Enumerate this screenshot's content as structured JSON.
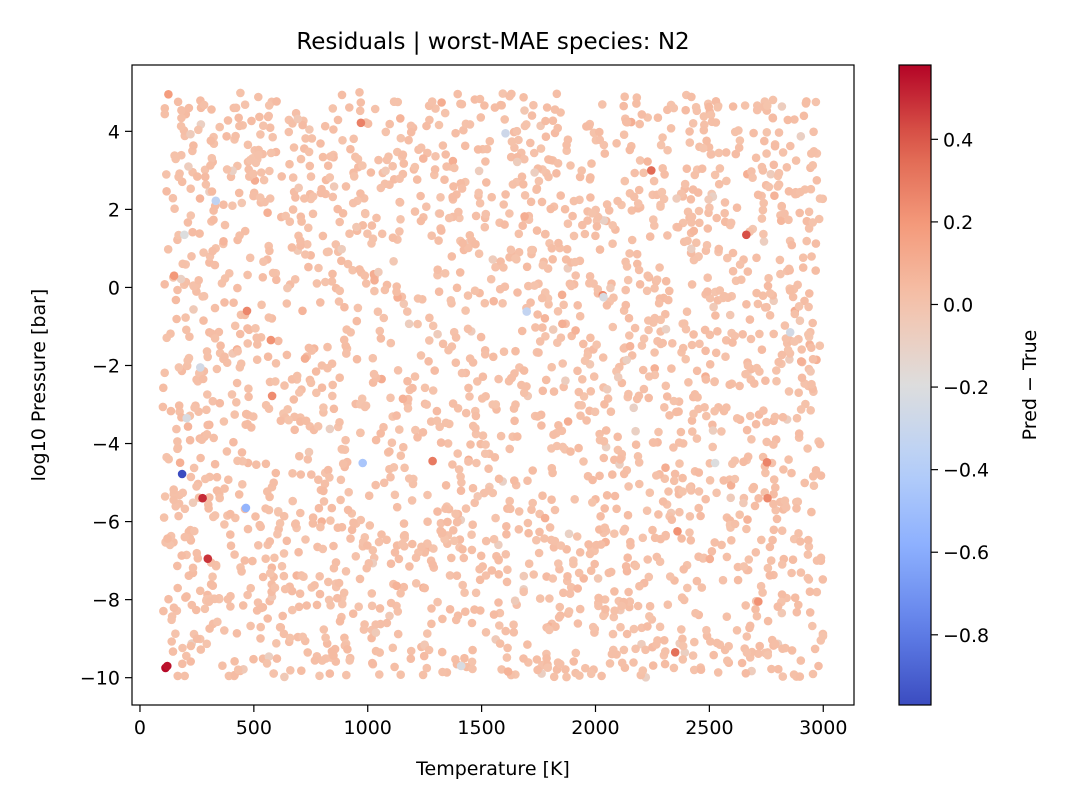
{
  "chart_data": {
    "type": "scatter",
    "title": "Residuals | worst-MAE species: N2",
    "xlabel": "Temperature [K]",
    "ylabel": "log10 Pressure [bar]",
    "xlim": [
      -35,
      3135
    ],
    "ylim": [
      -10.7,
      5.7
    ],
    "x_ticks": [
      0,
      500,
      1000,
      1500,
      2000,
      2500,
      3000
    ],
    "y_ticks": [
      4,
      2,
      0,
      -2,
      -4,
      -6,
      -8,
      -10
    ],
    "x_tick_labels": [
      "0",
      "500",
      "1000",
      "1500",
      "2000",
      "2500",
      "3000"
    ],
    "y_tick_labels": [
      "4",
      "2",
      "0",
      "−2",
      "−4",
      "−6",
      "−8",
      "−10"
    ],
    "grid": false,
    "colorbar": {
      "label": "Pred − True",
      "colormap": "coolwarm",
      "vmin": -0.97,
      "vmax": 0.58,
      "ticks": [
        0.4,
        0.2,
        0.0,
        -0.2,
        -0.4,
        -0.6,
        -0.8
      ],
      "tick_labels": [
        "0.4",
        "0.2",
        "0.0",
        "−0.2",
        "−0.4",
        "−0.6",
        "−0.8"
      ]
    },
    "bulk_points": {
      "count": 2400,
      "x_range": [
        100,
        3000
      ],
      "y_range": [
        -10,
        5
      ],
      "value_range": [
        -0.1,
        0.08
      ],
      "typical_value": 0.02
    },
    "notable_points": [
      {
        "x": 112,
        "y": -9.75,
        "value": 0.57
      },
      {
        "x": 120,
        "y": -9.7,
        "value": 0.55
      },
      {
        "x": 275,
        "y": -5.4,
        "value": 0.5
      },
      {
        "x": 298,
        "y": -6.95,
        "value": 0.48
      },
      {
        "x": 2662,
        "y": 1.35,
        "value": 0.42
      },
      {
        "x": 2245,
        "y": 3.0,
        "value": 0.35
      },
      {
        "x": 2350,
        "y": -9.35,
        "value": 0.33
      },
      {
        "x": 1285,
        "y": -4.45,
        "value": 0.3
      },
      {
        "x": 970,
        "y": 4.22,
        "value": 0.28
      },
      {
        "x": 2753,
        "y": -4.48,
        "value": 0.27
      },
      {
        "x": 2755,
        "y": -5.4,
        "value": 0.25
      },
      {
        "x": 470,
        "y": -0.6,
        "value": 0.26
      },
      {
        "x": 580,
        "y": -2.78,
        "value": 0.24
      },
      {
        "x": 575,
        "y": -1.35,
        "value": 0.22
      },
      {
        "x": 2032,
        "y": -0.2,
        "value": 0.25
      },
      {
        "x": 2715,
        "y": -8.05,
        "value": 0.22
      },
      {
        "x": 150,
        "y": 0.3,
        "value": 0.2
      },
      {
        "x": 125,
        "y": 4.95,
        "value": 0.18
      },
      {
        "x": 2360,
        "y": -6.25,
        "value": 0.22
      },
      {
        "x": 185,
        "y": -4.78,
        "value": -0.97
      },
      {
        "x": 465,
        "y": -5.65,
        "value": -0.55
      },
      {
        "x": 978,
        "y": -4.5,
        "value": -0.45
      },
      {
        "x": 333,
        "y": 2.22,
        "value": -0.35
      },
      {
        "x": 1698,
        "y": -0.62,
        "value": -0.33
      },
      {
        "x": 1605,
        "y": 3.95,
        "value": -0.28
      },
      {
        "x": 265,
        "y": -2.05,
        "value": -0.25
      },
      {
        "x": 205,
        "y": -3.35,
        "value": -0.22
      },
      {
        "x": 2855,
        "y": -1.15,
        "value": -0.25
      },
      {
        "x": 2035,
        "y": -0.25,
        "value": -0.22
      },
      {
        "x": 195,
        "y": 1.35,
        "value": -0.2
      },
      {
        "x": 2525,
        "y": -4.5,
        "value": -0.2
      },
      {
        "x": 1410,
        "y": -9.7,
        "value": -0.22
      }
    ]
  }
}
